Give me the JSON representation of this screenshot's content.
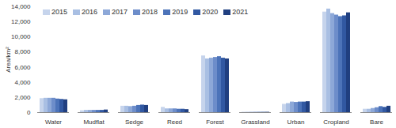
{
  "chart_data": {
    "type": "bar",
    "ylabel": "Area/km²",
    "categories": [
      "Water",
      "Mudflat",
      "Sedge",
      "Reed",
      "Forest",
      "Grassland",
      "Urban",
      "Cropland",
      "Bare"
    ],
    "series": [
      {
        "name": "2015",
        "color": "#c6d4ec",
        "values": [
          1850,
          250,
          850,
          700,
          7500,
          50,
          1100,
          13300,
          450
        ]
      },
      {
        "name": "2016",
        "color": "#a9bfe3",
        "values": [
          1900,
          300,
          850,
          500,
          7100,
          50,
          1200,
          13700,
          450
        ]
      },
      {
        "name": "2017",
        "color": "#8da8d8",
        "values": [
          1900,
          300,
          800,
          500,
          7200,
          50,
          1400,
          13100,
          550
        ]
      },
      {
        "name": "2018",
        "color": "#6d8dca",
        "values": [
          1900,
          300,
          850,
          500,
          7300,
          50,
          1350,
          12900,
          650
        ]
      },
      {
        "name": "2019",
        "color": "#4c73b9",
        "values": [
          1800,
          300,
          950,
          450,
          7400,
          50,
          1400,
          12700,
          800
        ]
      },
      {
        "name": "2020",
        "color": "#3158a2",
        "values": [
          1750,
          300,
          1000,
          450,
          7200,
          50,
          1400,
          12800,
          700
        ]
      },
      {
        "name": "2021",
        "color": "#203f80",
        "values": [
          1700,
          350,
          950,
          400,
          7100,
          50,
          1450,
          13200,
          850
        ]
      }
    ],
    "ylim": [
      0,
      14000
    ],
    "yticks": [
      0,
      {
        "value": 2000,
        "label": "2,000"
      },
      {
        "value": 4000,
        "label": "4,000"
      },
      {
        "value": 6000,
        "label": "6,000"
      },
      {
        "value": 8000,
        "label": "8,000"
      },
      {
        "value": 10000,
        "label": "10,000"
      },
      {
        "value": 12000,
        "label": "12,000"
      },
      {
        "value": 14000,
        "label": "14,000"
      }
    ],
    "grid": false,
    "legend": "top-left"
  }
}
